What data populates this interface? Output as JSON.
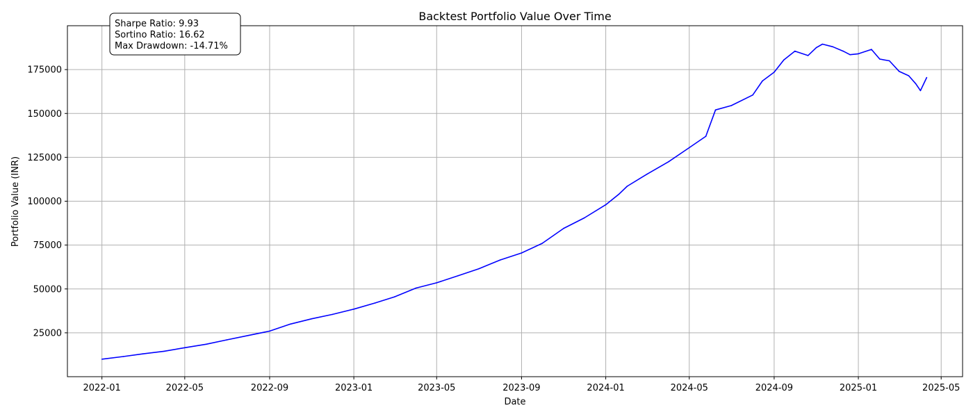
{
  "chart_data": {
    "type": "line",
    "title": "Backtest Portfolio Value Over Time",
    "xlabel": "Date",
    "ylabel": "Portfolio Value (INR)",
    "x_ticks": [
      "2022-01",
      "2022-05",
      "2022-09",
      "2023-01",
      "2023-05",
      "2023-09",
      "2024-01",
      "2024-05",
      "2024-09",
      "2025-01",
      "2025-05"
    ],
    "y_ticks": [
      "25000",
      "50000",
      "75000",
      "100000",
      "125000",
      "150000",
      "175000"
    ],
    "xlim": [
      "2021-11-12",
      "2025-06-01"
    ],
    "ylim": [
      0,
      200000
    ],
    "grid": true,
    "line_color": "#0000ff",
    "annotation": {
      "lines": [
        "Sharpe Ratio: 9.93",
        "Sortino Ratio: 16.62",
        "Max Drawdown: -14.71%"
      ]
    },
    "series": [
      {
        "points": [
          [
            "2022-01-01",
            10000
          ],
          [
            "2022-02-01",
            11500
          ],
          [
            "2022-03-01",
            13000
          ],
          [
            "2022-04-01",
            14500
          ],
          [
            "2022-05-01",
            16500
          ],
          [
            "2022-06-01",
            18500
          ],
          [
            "2022-07-01",
            21000
          ],
          [
            "2022-08-01",
            23500
          ],
          [
            "2022-09-01",
            26000
          ],
          [
            "2022-10-01",
            30000
          ],
          [
            "2022-11-01",
            33000
          ],
          [
            "2022-12-01",
            35500
          ],
          [
            "2023-01-01",
            38500
          ],
          [
            "2023-02-01",
            42000
          ],
          [
            "2023-03-01",
            45500
          ],
          [
            "2023-04-01",
            50500
          ],
          [
            "2023-05-01",
            53500
          ],
          [
            "2023-06-01",
            57500
          ],
          [
            "2023-07-01",
            61500
          ],
          [
            "2023-08-01",
            66500
          ],
          [
            "2023-09-01",
            70500
          ],
          [
            "2023-10-01",
            76000
          ],
          [
            "2023-11-01",
            84500
          ],
          [
            "2023-12-01",
            90500
          ],
          [
            "2024-01-01",
            98000
          ],
          [
            "2024-01-20",
            104000
          ],
          [
            "2024-02-01",
            108500
          ],
          [
            "2024-03-01",
            115500
          ],
          [
            "2024-04-01",
            122500
          ],
          [
            "2024-05-01",
            130500
          ],
          [
            "2024-05-25",
            137000
          ],
          [
            "2024-06-08",
            152000
          ],
          [
            "2024-07-01",
            154500
          ],
          [
            "2024-08-01",
            160500
          ],
          [
            "2024-08-15",
            168500
          ],
          [
            "2024-09-01",
            173500
          ],
          [
            "2024-09-15",
            180500
          ],
          [
            "2024-10-01",
            185500
          ],
          [
            "2024-10-20",
            183000
          ],
          [
            "2024-11-01",
            187500
          ],
          [
            "2024-11-10",
            189500
          ],
          [
            "2024-11-25",
            188000
          ],
          [
            "2024-12-10",
            185500
          ],
          [
            "2024-12-20",
            183500
          ],
          [
            "2025-01-01",
            184000
          ],
          [
            "2025-01-20",
            186500
          ],
          [
            "2025-02-01",
            181000
          ],
          [
            "2025-02-15",
            180000
          ],
          [
            "2025-03-01",
            174000
          ],
          [
            "2025-03-15",
            171500
          ],
          [
            "2025-03-25",
            167000
          ],
          [
            "2025-04-01",
            163000
          ],
          [
            "2025-04-10",
            170500
          ]
        ]
      }
    ]
  }
}
